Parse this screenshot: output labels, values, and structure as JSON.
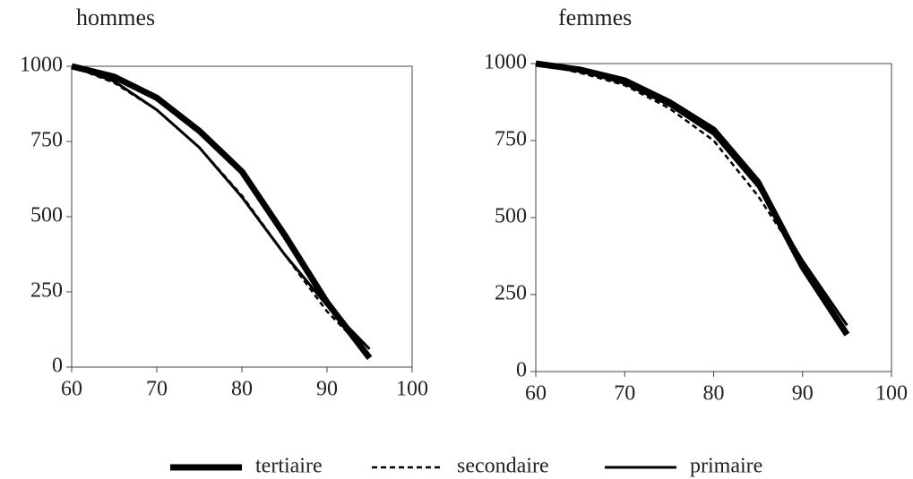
{
  "chart_data": [
    {
      "type": "line",
      "title": "hommes",
      "x": [
        60,
        65,
        70,
        75,
        80,
        85,
        90,
        95
      ],
      "xlim": [
        60,
        100
      ],
      "xticks": [
        60,
        70,
        80,
        90,
        100
      ],
      "ylim": [
        0,
        1000
      ],
      "yticks": [
        0,
        250,
        500,
        750,
        1000
      ],
      "series": [
        {
          "name": "tertiaire",
          "color": "#000000",
          "width": 7,
          "dash": "none",
          "values": [
            1000,
            965,
            895,
            785,
            650,
            440,
            215,
            30
          ]
        },
        {
          "name": "secondaire",
          "color": "#000000",
          "width": 2.5,
          "dash": "6 4",
          "values": [
            1000,
            945,
            855,
            730,
            570,
            375,
            185,
            40
          ]
        },
        {
          "name": "primaire",
          "color": "#000000",
          "width": 3,
          "dash": "none",
          "values": [
            1000,
            950,
            855,
            730,
            565,
            375,
            205,
            60
          ]
        }
      ]
    },
    {
      "type": "line",
      "title": "femmes",
      "x": [
        60,
        65,
        70,
        75,
        80,
        85,
        90,
        95
      ],
      "xlim": [
        60,
        100
      ],
      "xticks": [
        60,
        70,
        80,
        90,
        100
      ],
      "ylim": [
        0,
        1000
      ],
      "yticks": [
        0,
        250,
        500,
        750,
        1000
      ],
      "series": [
        {
          "color": "#000000",
          "width": 7,
          "dash": "none",
          "values": [
            1000,
            980,
            945,
            875,
            785,
            615,
            340,
            120
          ]
        },
        {
          "color": "#000000",
          "width": 2.5,
          "dash": "6 4",
          "values": [
            1000,
            970,
            930,
            855,
            750,
            570,
            350,
            130
          ]
        },
        {
          "color": "#000000",
          "width": 3,
          "dash": "none",
          "values": [
            1000,
            975,
            935,
            865,
            770,
            600,
            360,
            150
          ]
        }
      ]
    }
  ]
}
